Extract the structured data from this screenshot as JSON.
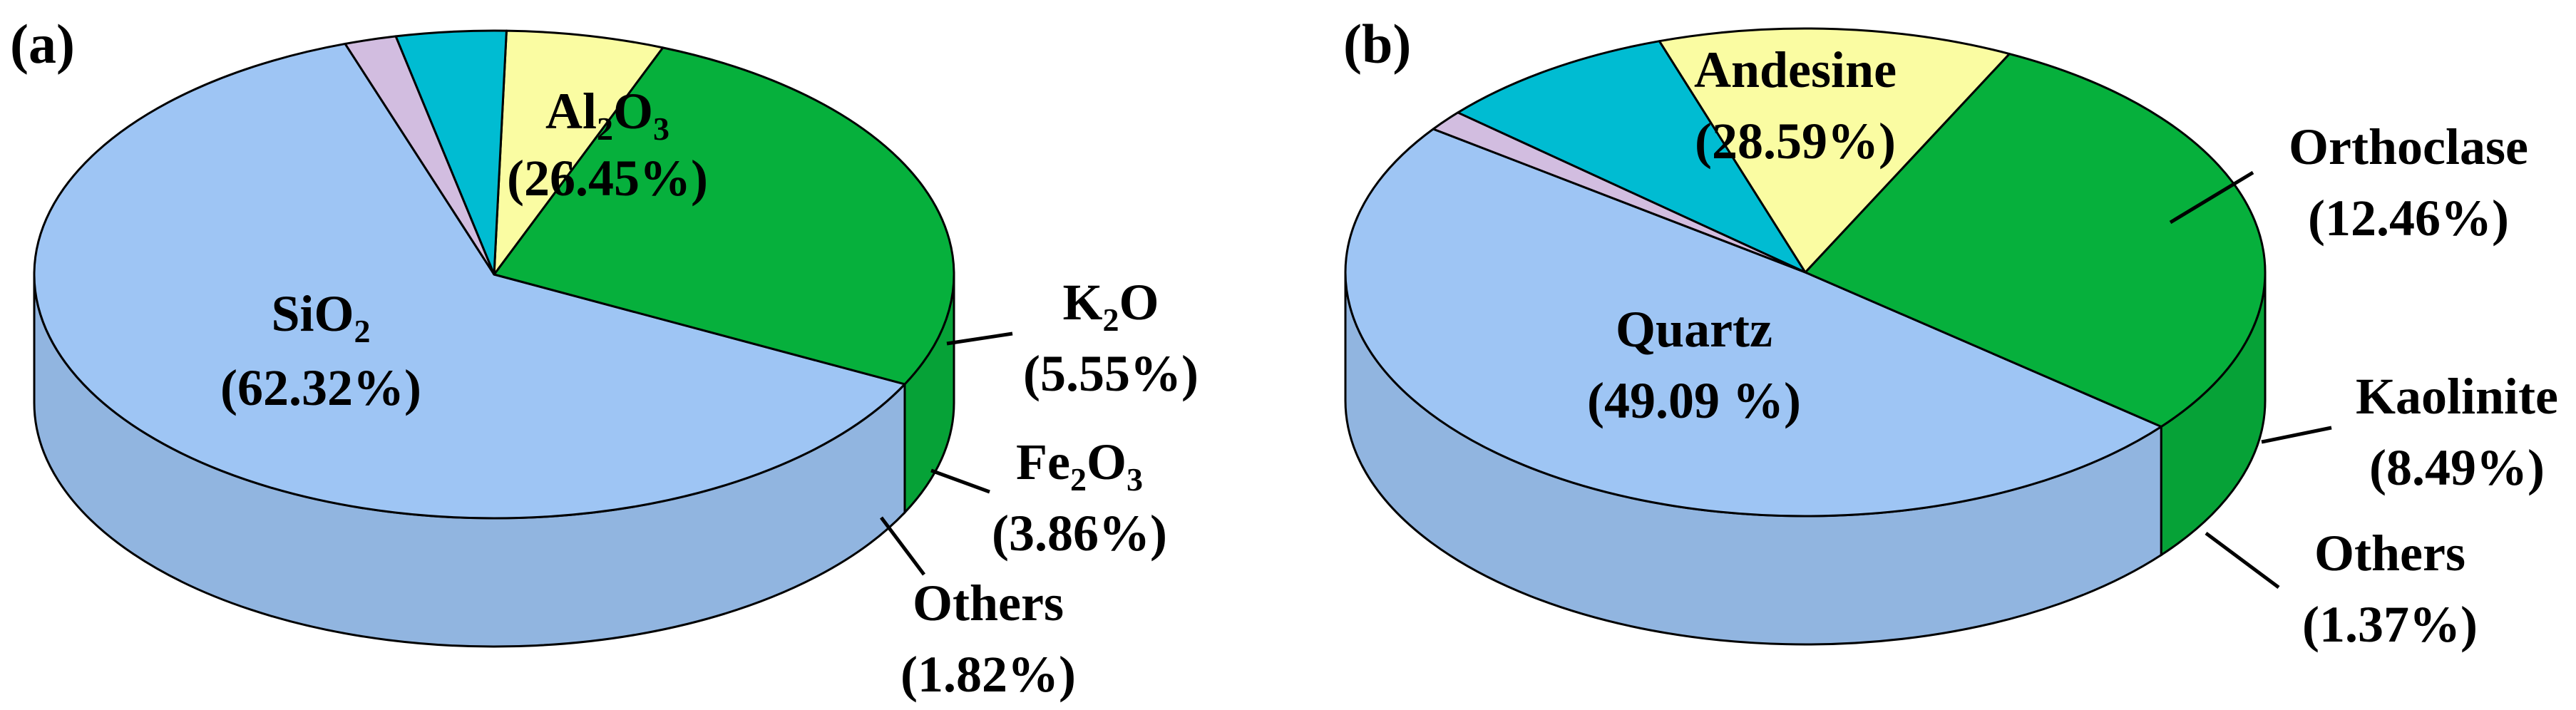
{
  "colors": {
    "blue": "#9ec5f4",
    "green": "#06b03c",
    "yellow": "#fafca2",
    "cyan": "#00bcd2",
    "lilac": "#d2bde0",
    "outline": "#000000"
  },
  "chart_data": [
    {
      "type": "pie",
      "style": "3d",
      "panel_label": "(a)",
      "slices": [
        {
          "key": "sio2",
          "name": "SiO2",
          "label_main": "SiO",
          "label_sub": "2",
          "label_tail": "",
          "value": 62.32,
          "percent_label": "(62.32%)",
          "color": "#9ec5f4"
        },
        {
          "key": "al2o3",
          "name": "Al2O3",
          "label_main": "Al",
          "label_sub": "2",
          "label_tail": "O",
          "label_sub2": "3",
          "value": 26.45,
          "percent_label": "(26.45%)",
          "color": "#06b03c"
        },
        {
          "key": "k2o",
          "name": "K2O",
          "label_main": "K",
          "label_sub": "2",
          "label_tail": "O",
          "value": 5.55,
          "percent_label": "(5.55%)",
          "color": "#fafca2"
        },
        {
          "key": "fe2o3",
          "name": "Fe2O3",
          "label_main": "Fe",
          "label_sub": "2",
          "label_tail": "O",
          "label_sub2": "3",
          "value": 3.86,
          "percent_label": "(3.86%)",
          "color": "#00bcd2"
        },
        {
          "key": "others",
          "name": "Others",
          "label_main": "Others",
          "label_sub": "",
          "label_tail": "",
          "value": 1.82,
          "percent_label": "(1.82%)",
          "color": "#d2bde0"
        }
      ]
    },
    {
      "type": "pie",
      "style": "3d",
      "panel_label": "(b)",
      "slices": [
        {
          "key": "quartz",
          "name": "Quartz",
          "label_main": "Quartz",
          "value": 49.09,
          "percent_label": "(49.09 %)",
          "color": "#9ec5f4"
        },
        {
          "key": "andesine",
          "name": "Andesine",
          "label_main": "Andesine",
          "value": 28.59,
          "percent_label": "(28.59%)",
          "color": "#06b03c"
        },
        {
          "key": "orthoclase",
          "name": "Orthoclase",
          "label_main": "Orthoclase",
          "value": 12.46,
          "percent_label": "(12.46%)",
          "color": "#fafca2"
        },
        {
          "key": "kaolinite",
          "name": "Kaolinite",
          "label_main": "Kaolinite",
          "value": 8.49,
          "percent_label": "(8.49%)",
          "color": "#00bcd2"
        },
        {
          "key": "others",
          "name": "Others",
          "label_main": "Others",
          "value": 1.37,
          "percent_label": "(1.37%)",
          "color": "#d2bde0"
        }
      ]
    }
  ]
}
